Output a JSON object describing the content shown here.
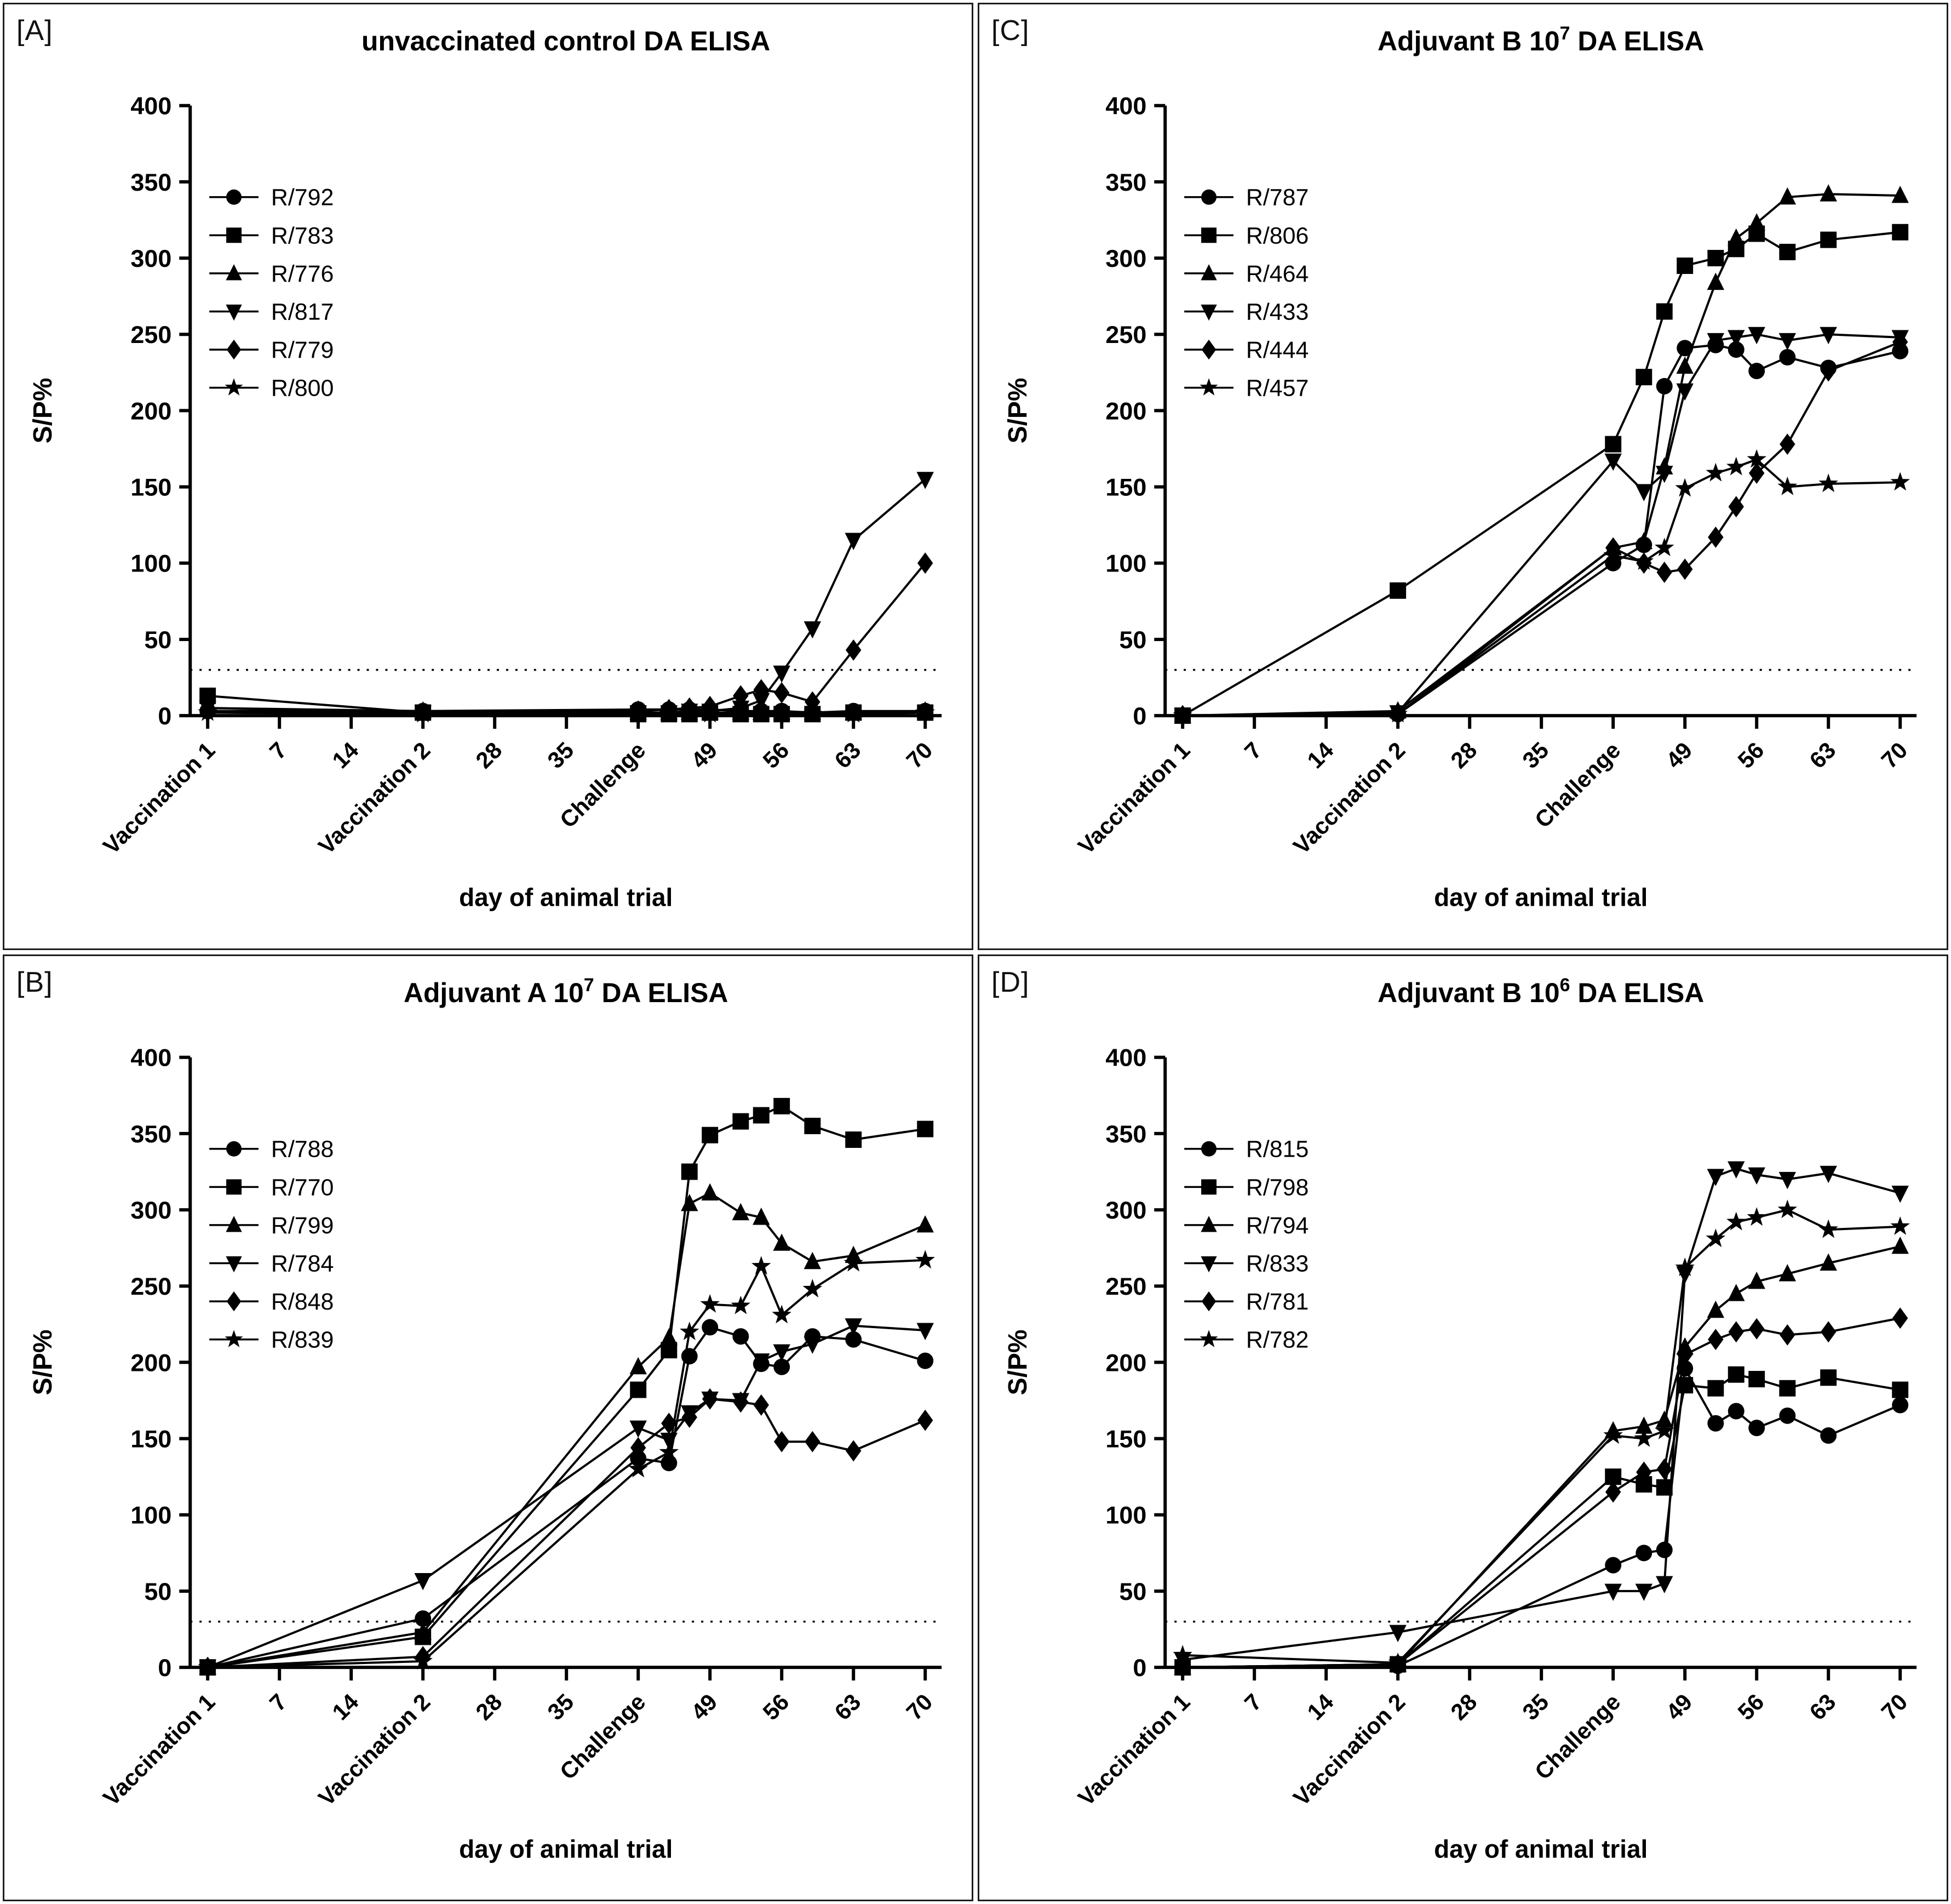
{
  "figure": {
    "background": "#ffffff",
    "line_color": "#000000",
    "panel_letters": [
      "[A]",
      "[C]",
      "[B]",
      "[D]"
    ]
  },
  "chart_data": [
    {
      "panel_label": "[A]",
      "type": "line",
      "title": {
        "prefix": "unvaccinated control DA ELISA",
        "sup": "",
        "suffix": ""
      },
      "xlabel": "day of animal trial",
      "ylabel": "S/P%",
      "ylim": [
        0,
        400
      ],
      "ytick_step": 50,
      "threshold": 30,
      "grid": false,
      "legend_position": "top-left",
      "days": [
        0,
        21,
        42,
        45,
        47,
        49,
        52,
        54,
        56,
        59,
        63,
        70
      ],
      "x_ticks": [
        {
          "day": 0,
          "label": "Vaccination 1"
        },
        {
          "day": 7,
          "label": "7"
        },
        {
          "day": 14,
          "label": "14"
        },
        {
          "day": 21,
          "label": "Vaccination 2"
        },
        {
          "day": 28,
          "label": "28"
        },
        {
          "day": 35,
          "label": "35"
        },
        {
          "day": 42,
          "label": "Challenge"
        },
        {
          "day": 49,
          "label": "49"
        },
        {
          "day": 56,
          "label": "56"
        },
        {
          "day": 63,
          "label": "63"
        },
        {
          "day": 70,
          "label": "70"
        }
      ],
      "series": [
        {
          "name": "R/792",
          "marker": "circle",
          "values": [
            3,
            3,
            4,
            4,
            4,
            4,
            3,
            3,
            3,
            2,
            3,
            3
          ]
        },
        {
          "name": "R/783",
          "marker": "square",
          "values": [
            13,
            2,
            1,
            1,
            1,
            2,
            1,
            1,
            1,
            1,
            2,
            2
          ]
        },
        {
          "name": "R/776",
          "marker": "triangle-up",
          "values": [
            5,
            3,
            2,
            2,
            2,
            2,
            2,
            2,
            2,
            2,
            2,
            3
          ]
        },
        {
          "name": "R/817",
          "marker": "triangle-down",
          "values": [
            5,
            2,
            2,
            2,
            3,
            3,
            5,
            10,
            28,
            57,
            115,
            155
          ]
        },
        {
          "name": "R/779",
          "marker": "diamond",
          "values": [
            3,
            2,
            3,
            4,
            5,
            6,
            13,
            17,
            15,
            9,
            43,
            100
          ]
        },
        {
          "name": "R/800",
          "marker": "star",
          "values": [
            2,
            1,
            1,
            1,
            1,
            1,
            1,
            1,
            1,
            1,
            1,
            2
          ]
        }
      ]
    },
    {
      "panel_label": "[C]",
      "type": "line",
      "title": {
        "prefix": "Adjuvant  B 10",
        "sup": "7",
        "suffix": " DA ELISA"
      },
      "xlabel": "day of animal trial",
      "ylabel": "S/P%",
      "ylim": [
        0,
        400
      ],
      "ytick_step": 50,
      "threshold": 30,
      "grid": false,
      "legend_position": "top-left",
      "days": [
        0,
        21,
        42,
        45,
        47,
        49,
        52,
        54,
        56,
        59,
        63,
        70
      ],
      "x_ticks": [
        {
          "day": 0,
          "label": "Vaccination 1"
        },
        {
          "day": 7,
          "label": "7"
        },
        {
          "day": 14,
          "label": "14"
        },
        {
          "day": 21,
          "label": "Vaccination 2"
        },
        {
          "day": 28,
          "label": "28"
        },
        {
          "day": 35,
          "label": "35"
        },
        {
          "day": 42,
          "label": "Challenge"
        },
        {
          "day": 49,
          "label": "49"
        },
        {
          "day": 56,
          "label": "56"
        },
        {
          "day": 63,
          "label": "63"
        },
        {
          "day": 70,
          "label": "70"
        }
      ],
      "series": [
        {
          "name": "R/787",
          "marker": "circle",
          "values": [
            0,
            1,
            100,
            112,
            216,
            241,
            243,
            240,
            226,
            235,
            228,
            239
          ]
        },
        {
          "name": "R/806",
          "marker": "square",
          "values": [
            0,
            82,
            178,
            222,
            265,
            295,
            300,
            306,
            316,
            304,
            312,
            317
          ]
        },
        {
          "name": "R/464",
          "marker": "triangle-up",
          "values": [
            0,
            3,
            110,
            114,
            163,
            229,
            284,
            313,
            323,
            340,
            342,
            341
          ]
        },
        {
          "name": "R/433",
          "marker": "triangle-down",
          "values": [
            0,
            2,
            167,
            147,
            159,
            213,
            246,
            248,
            250,
            246,
            250,
            248
          ]
        },
        {
          "name": "R/444",
          "marker": "diamond",
          "values": [
            0,
            1,
            110,
            100,
            94,
            96,
            117,
            137,
            159,
            178,
            226,
            245
          ]
        },
        {
          "name": "R/457",
          "marker": "star",
          "values": [
            0,
            1,
            105,
            101,
            110,
            149,
            159,
            163,
            168,
            150,
            152,
            153
          ]
        }
      ]
    },
    {
      "panel_label": "[B]",
      "type": "line",
      "title": {
        "prefix": "Adjuvant  A 10",
        "sup": "7",
        "suffix": " DA ELISA"
      },
      "xlabel": "day of animal trial",
      "ylabel": "S/P%",
      "ylim": [
        0,
        400
      ],
      "ytick_step": 50,
      "threshold": 30,
      "grid": false,
      "legend_position": "top-left",
      "days": [
        0,
        21,
        42,
        45,
        47,
        49,
        52,
        54,
        56,
        59,
        63,
        70
      ],
      "x_ticks": [
        {
          "day": 0,
          "label": "Vaccination 1"
        },
        {
          "day": 7,
          "label": "7"
        },
        {
          "day": 14,
          "label": "14"
        },
        {
          "day": 21,
          "label": "Vaccination 2"
        },
        {
          "day": 28,
          "label": "28"
        },
        {
          "day": 35,
          "label": "35"
        },
        {
          "day": 42,
          "label": "Challenge"
        },
        {
          "day": 49,
          "label": "49"
        },
        {
          "day": 56,
          "label": "56"
        },
        {
          "day": 63,
          "label": "63"
        },
        {
          "day": 70,
          "label": "70"
        }
      ],
      "series": [
        {
          "name": "R/788",
          "marker": "circle",
          "values": [
            0,
            32,
            137,
            134,
            204,
            223,
            217,
            199,
            197,
            217,
            215,
            201
          ]
        },
        {
          "name": "R/770",
          "marker": "square",
          "values": [
            0,
            20,
            182,
            208,
            325,
            349,
            358,
            362,
            368,
            355,
            346,
            353
          ]
        },
        {
          "name": "R/799",
          "marker": "triangle-up",
          "values": [
            0,
            23,
            197,
            216,
            304,
            311,
            298,
            295,
            278,
            266,
            270,
            290
          ]
        },
        {
          "name": "R/784",
          "marker": "triangle-down",
          "values": [
            0,
            57,
            157,
            149,
            167,
            176,
            175,
            201,
            207,
            212,
            224,
            221
          ]
        },
        {
          "name": "R/848",
          "marker": "diamond",
          "values": [
            0,
            7,
            144,
            160,
            164,
            176,
            174,
            172,
            148,
            148,
            142,
            162
          ]
        },
        {
          "name": "R/839",
          "marker": "star",
          "values": [
            0,
            4,
            130,
            141,
            220,
            238,
            237,
            263,
            231,
            248,
            265,
            267
          ]
        }
      ]
    },
    {
      "panel_label": "[D]",
      "type": "line",
      "title": {
        "prefix": "Adjuvant  B 10",
        "sup": "6",
        "suffix": " DA ELISA"
      },
      "xlabel": "day of animal trial",
      "ylabel": "S/P%",
      "ylim": [
        0,
        400
      ],
      "ytick_step": 50,
      "threshold": 30,
      "grid": false,
      "legend_position": "top-left",
      "days": [
        0,
        21,
        42,
        45,
        47,
        49,
        52,
        54,
        56,
        59,
        63,
        70
      ],
      "x_ticks": [
        {
          "day": 0,
          "label": "Vaccination 1"
        },
        {
          "day": 7,
          "label": "7"
        },
        {
          "day": 14,
          "label": "14"
        },
        {
          "day": 21,
          "label": "Vaccination 2"
        },
        {
          "day": 28,
          "label": "28"
        },
        {
          "day": 35,
          "label": "35"
        },
        {
          "day": 42,
          "label": "Challenge"
        },
        {
          "day": 49,
          "label": "49"
        },
        {
          "day": 56,
          "label": "56"
        },
        {
          "day": 63,
          "label": "63"
        },
        {
          "day": 70,
          "label": "70"
        }
      ],
      "series": [
        {
          "name": "R/815",
          "marker": "circle",
          "values": [
            0,
            1,
            67,
            75,
            77,
            196,
            160,
            168,
            157,
            165,
            152,
            172
          ]
        },
        {
          "name": "R/798",
          "marker": "square",
          "values": [
            0,
            2,
            125,
            120,
            118,
            185,
            183,
            192,
            189,
            183,
            190,
            182
          ]
        },
        {
          "name": "R/794",
          "marker": "triangle-up",
          "values": [
            0,
            2,
            155,
            158,
            162,
            210,
            234,
            245,
            253,
            258,
            265,
            276
          ]
        },
        {
          "name": "R/833",
          "marker": "triangle-down",
          "values": [
            5,
            23,
            50,
            50,
            55,
            258,
            322,
            327,
            323,
            320,
            324,
            311
          ]
        },
        {
          "name": "R/781",
          "marker": "diamond",
          "values": [
            0,
            2,
            115,
            128,
            130,
            205,
            215,
            220,
            222,
            218,
            220,
            229
          ]
        },
        {
          "name": "R/782",
          "marker": "star",
          "values": [
            8,
            3,
            152,
            150,
            155,
            262,
            281,
            292,
            295,
            300,
            287,
            289
          ]
        }
      ]
    }
  ]
}
